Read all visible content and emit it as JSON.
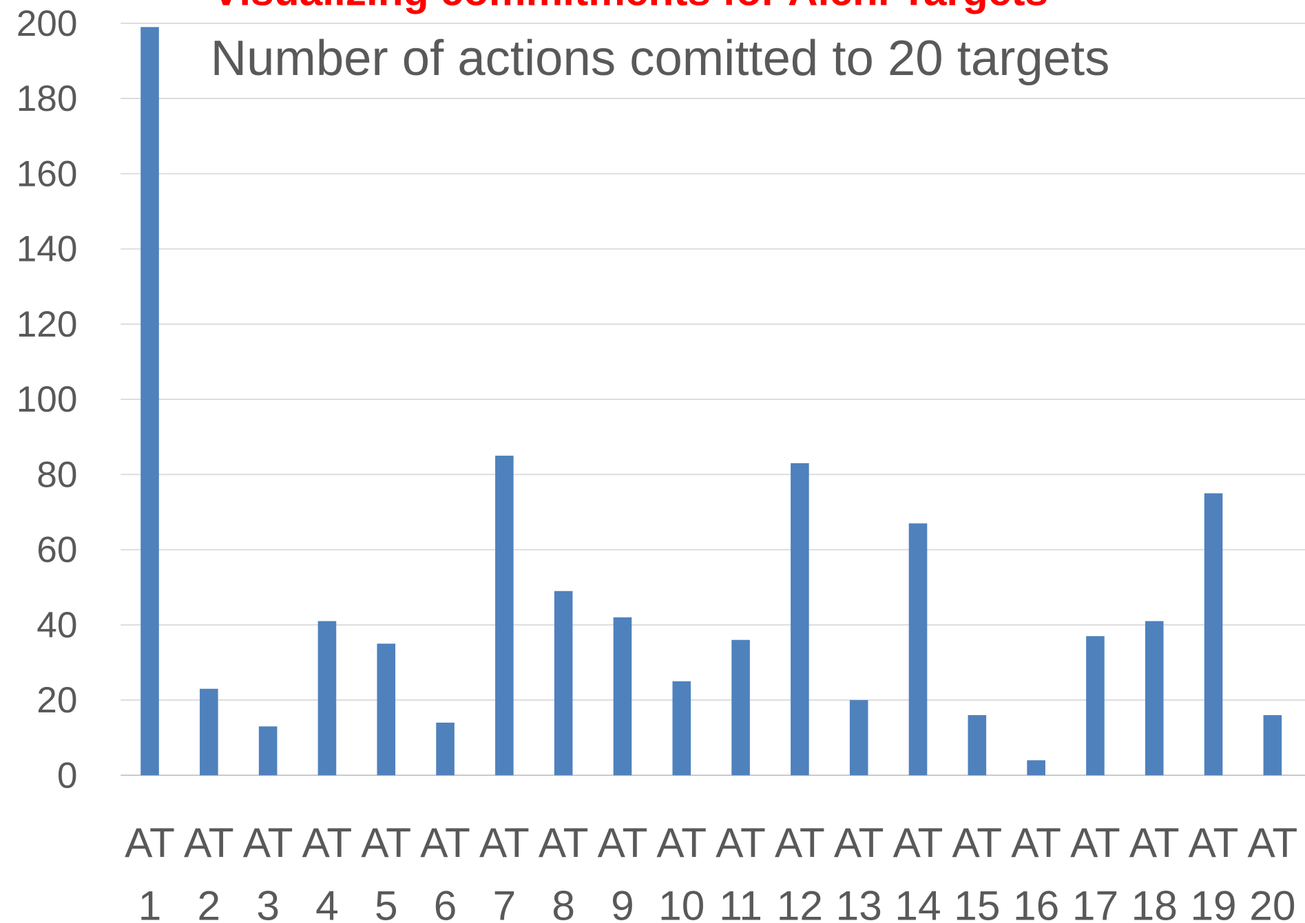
{
  "chart_data": {
    "type": "bar",
    "title": "Visualizing commitments for Aichi Targets",
    "subtitle": "Number of actions comitted to 20 targets",
    "categories": [
      "AT 1",
      "AT 2",
      "AT 3",
      "AT 4",
      "AT 5",
      "AT 6",
      "AT 7",
      "AT 8",
      "AT 9",
      "AT 10",
      "AT 11",
      "AT 12",
      "AT 13",
      "AT 14",
      "AT 15",
      "AT 16",
      "AT 17",
      "AT 18",
      "AT 19",
      "AT 20"
    ],
    "values": [
      199,
      23,
      13,
      41,
      35,
      14,
      85,
      49,
      42,
      25,
      36,
      83,
      20,
      67,
      16,
      4,
      37,
      41,
      75,
      16
    ],
    "color": "#4f81bd",
    "ylim": [
      0,
      200
    ],
    "yticks": [
      0,
      20,
      40,
      60,
      80,
      100,
      120,
      140,
      160,
      180,
      200
    ],
    "grid": true
  }
}
